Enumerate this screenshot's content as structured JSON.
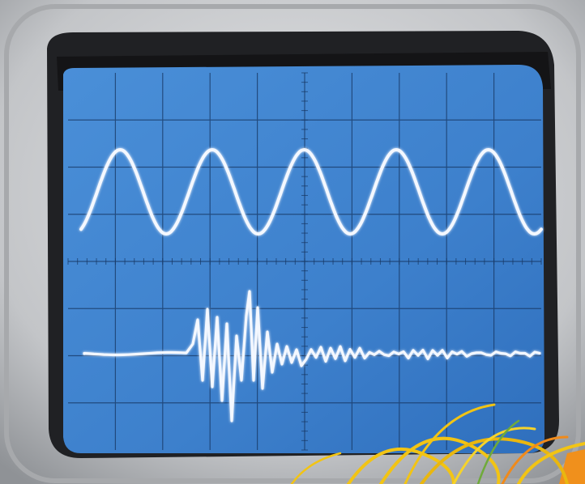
{
  "scene": {
    "subject": "oscilloscope-screen",
    "colors": {
      "bezel": "#c9cacc",
      "bezel_shadow": "#8e9093",
      "frame_dark": "#1c1c1e",
      "screen": "#3f84d0",
      "grid": "#1a3a66",
      "trace": "#f4f8ff",
      "wire_yellow": "#f2c414",
      "wire_orange": "#ee8a1a",
      "wire_green": "#6faa3a"
    },
    "traces": [
      {
        "name": "sine-trace",
        "cycles": 5
      },
      {
        "name": "burst-trace"
      }
    ],
    "graticule": {
      "columns": 10,
      "rows": 8
    }
  }
}
